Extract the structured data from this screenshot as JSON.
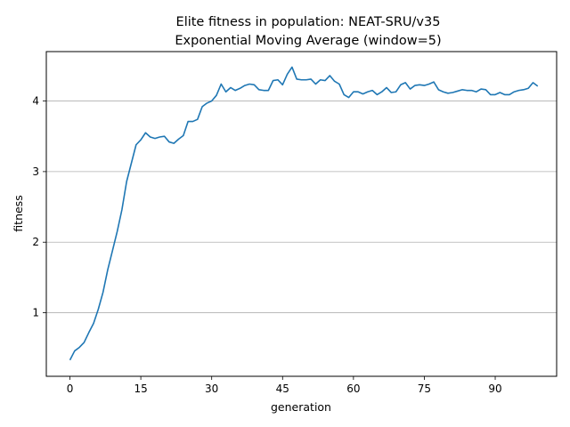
{
  "chart_data": {
    "type": "line",
    "title": "Elite fitness in population: NEAT-SRU/v35",
    "subtitle": "Exponential Moving Average (window=5)",
    "xlabel": "generation",
    "ylabel": "fitness",
    "xlim": [
      -5,
      103
    ],
    "ylim": [
      0.1,
      4.7
    ],
    "xticks": [
      0,
      15,
      30,
      45,
      60,
      75,
      90
    ],
    "yticks": [
      1,
      2,
      3,
      4
    ],
    "grid": "horizontal",
    "line_color": "#1f77b4",
    "series": [
      {
        "x": [
          0,
          1,
          2,
          3,
          4,
          5,
          6,
          7,
          8,
          9,
          10,
          11,
          12,
          13,
          14,
          15,
          16,
          17,
          18,
          19,
          20,
          21,
          22,
          23,
          24,
          25,
          26,
          27,
          28,
          29,
          30,
          31,
          32,
          33,
          34,
          35,
          36,
          37,
          38,
          39,
          40,
          41,
          42,
          43,
          44,
          45,
          46,
          47,
          48,
          49,
          50,
          51,
          52,
          53,
          54,
          55,
          56,
          57,
          58,
          59,
          60,
          61,
          62,
          63,
          64,
          65,
          66,
          67,
          68,
          69,
          70,
          71,
          72,
          73,
          74,
          75,
          76,
          77,
          78,
          79,
          80,
          81,
          82,
          83,
          84,
          85,
          86,
          87,
          88,
          89,
          90,
          91,
          92,
          93,
          94,
          95,
          96,
          97,
          98,
          99
        ],
        "values": [
          0.33,
          0.46,
          0.51,
          0.58,
          0.72,
          0.85,
          1.05,
          1.29,
          1.61,
          1.88,
          2.15,
          2.46,
          2.86,
          3.12,
          3.38,
          3.45,
          3.55,
          3.49,
          3.47,
          3.49,
          3.5,
          3.42,
          3.4,
          3.46,
          3.51,
          3.71,
          3.71,
          3.74,
          3.92,
          3.97,
          4.0,
          4.08,
          4.24,
          4.13,
          4.19,
          4.15,
          4.18,
          4.22,
          4.24,
          4.23,
          4.16,
          4.15,
          4.15,
          4.29,
          4.3,
          4.23,
          4.38,
          4.48,
          4.31,
          4.3,
          4.3,
          4.31,
          4.24,
          4.3,
          4.29,
          4.36,
          4.28,
          4.24,
          4.09,
          4.05,
          4.13,
          4.13,
          4.1,
          4.13,
          4.15,
          4.09,
          4.13,
          4.19,
          4.12,
          4.13,
          4.23,
          4.26,
          4.17,
          4.22,
          4.23,
          4.22,
          4.24,
          4.27,
          4.16,
          4.13,
          4.11,
          4.12,
          4.14,
          4.16,
          4.15,
          4.15,
          4.13,
          4.17,
          4.16,
          4.09,
          4.09,
          4.12,
          4.09,
          4.09,
          4.13,
          4.15,
          4.16,
          4.18,
          4.26,
          4.21
        ]
      }
    ]
  }
}
